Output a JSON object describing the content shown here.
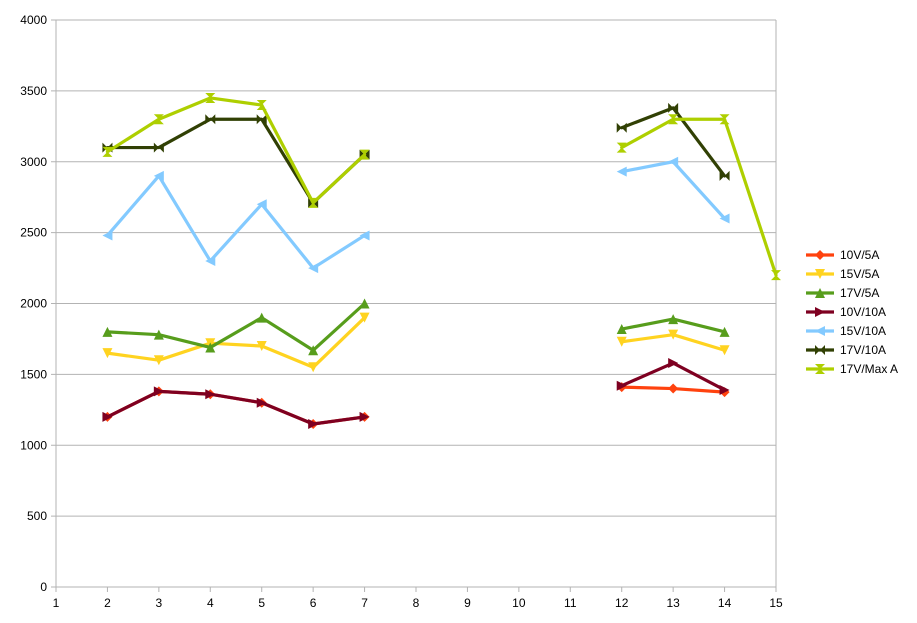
{
  "chart_data": {
    "type": "line",
    "title": "",
    "xlabel": "",
    "ylabel": "",
    "xlim": [
      1,
      15
    ],
    "ylim": [
      0,
      4000
    ],
    "x_ticks": [
      1,
      2,
      3,
      4,
      5,
      6,
      7,
      8,
      9,
      10,
      11,
      12,
      13,
      14,
      15
    ],
    "y_ticks": [
      0,
      500,
      1000,
      1500,
      2000,
      2500,
      3000,
      3500,
      4000
    ],
    "grid": "horizontal",
    "legend_position": "right",
    "series": [
      {
        "name": "10V/5A",
        "color": "#ff420e",
        "marker": "diamond",
        "points": [
          [
            2,
            1200
          ],
          [
            3,
            1380
          ],
          [
            4,
            1360
          ],
          [
            5,
            1300
          ],
          [
            6,
            1150
          ],
          [
            7,
            1200
          ],
          [
            12,
            1410
          ],
          [
            13,
            1400
          ],
          [
            14,
            1375
          ]
        ]
      },
      {
        "name": "15V/5A",
        "color": "#ffd320",
        "marker": "triangle-down",
        "points": [
          [
            2,
            1650
          ],
          [
            3,
            1600
          ],
          [
            4,
            1720
          ],
          [
            5,
            1700
          ],
          [
            6,
            1550
          ],
          [
            7,
            1900
          ],
          [
            12,
            1730
          ],
          [
            13,
            1780
          ],
          [
            14,
            1670
          ]
        ]
      },
      {
        "name": "17V/5A",
        "color": "#579d1c",
        "marker": "triangle-up",
        "points": [
          [
            2,
            1800
          ],
          [
            3,
            1780
          ],
          [
            4,
            1690
          ],
          [
            5,
            1900
          ],
          [
            6,
            1670
          ],
          [
            7,
            2000
          ],
          [
            12,
            1820
          ],
          [
            13,
            1890
          ],
          [
            14,
            1800
          ]
        ]
      },
      {
        "name": "10V/10A",
        "color": "#7e0021",
        "marker": "triangle-right",
        "points": [
          [
            2,
            1200
          ],
          [
            3,
            1380
          ],
          [
            4,
            1360
          ],
          [
            5,
            1300
          ],
          [
            6,
            1150
          ],
          [
            7,
            1200
          ],
          [
            12,
            1420
          ],
          [
            13,
            1580
          ],
          [
            14,
            1390
          ]
        ]
      },
      {
        "name": "15V/10A",
        "color": "#83caff",
        "marker": "triangle-left",
        "points": [
          [
            2,
            2480
          ],
          [
            3,
            2900
          ],
          [
            4,
            2300
          ],
          [
            5,
            2700
          ],
          [
            6,
            2250
          ],
          [
            7,
            2480
          ],
          [
            12,
            2930
          ],
          [
            13,
            3000
          ],
          [
            14,
            2600
          ]
        ]
      },
      {
        "name": "17V/10A",
        "color": "#314004",
        "marker": "bowtie",
        "points": [
          [
            2,
            3100
          ],
          [
            3,
            3100
          ],
          [
            4,
            3300
          ],
          [
            5,
            3300
          ],
          [
            6,
            2710
          ],
          [
            7,
            3050
          ],
          [
            12,
            3240
          ],
          [
            13,
            3380
          ],
          [
            14,
            2900
          ]
        ]
      },
      {
        "name": "17V/Max A",
        "color": "#aecf00",
        "marker": "hourglass",
        "points": [
          [
            2,
            3070
          ],
          [
            3,
            3300
          ],
          [
            4,
            3450
          ],
          [
            5,
            3400
          ],
          [
            6,
            2710
          ],
          [
            7,
            3050
          ],
          [
            12,
            3100
          ],
          [
            13,
            3300
          ],
          [
            14,
            3300
          ],
          [
            15,
            2200
          ]
        ]
      }
    ]
  }
}
